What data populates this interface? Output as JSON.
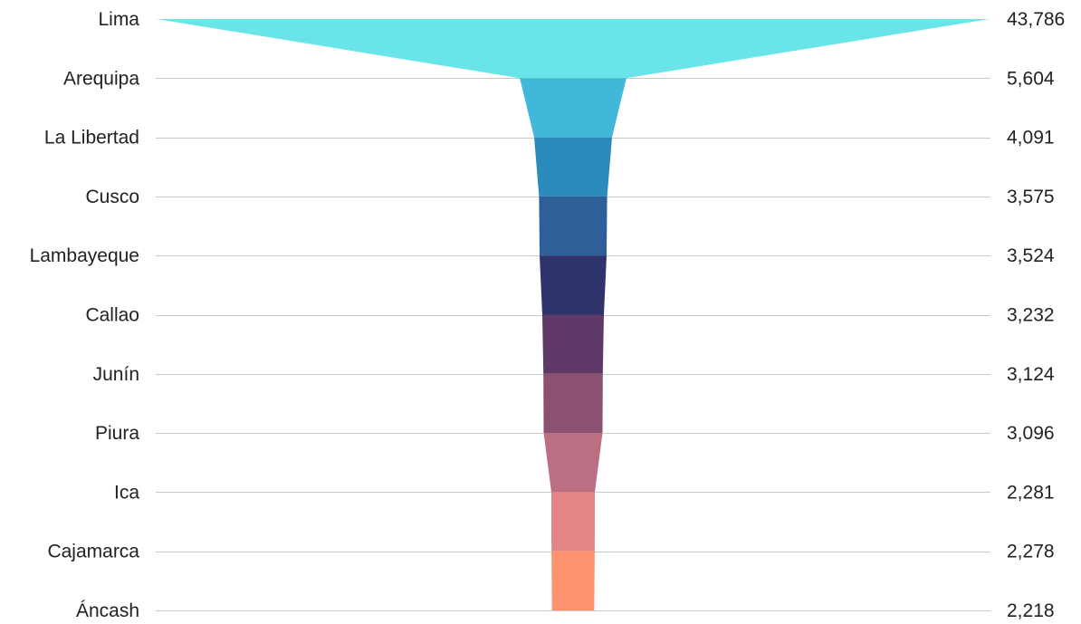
{
  "chart_data": {
    "type": "funnel",
    "title": "",
    "categories": [
      "Lima",
      "Arequipa",
      "La Libertad",
      "Cusco",
      "Lambayeque",
      "Callao",
      "Junín",
      "Piura",
      "Ica",
      "Cajamarca",
      "Áncash"
    ],
    "values": [
      43786,
      5604,
      4091,
      3575,
      3524,
      3232,
      3124,
      3096,
      2281,
      2278,
      2218
    ],
    "value_labels": [
      "43,786",
      "5,604",
      "4,091",
      "3,575",
      "3,524",
      "3,232",
      "3,124",
      "3,096",
      "2,281",
      "2,278",
      "2,218"
    ],
    "colors": [
      "#69e4e9",
      "#42b8d8",
      "#2b8bbd",
      "#2e5f99",
      "#2f336c",
      "#5e3867",
      "#8a5171",
      "#bc6e83",
      "#e38586",
      "#ff936f"
    ],
    "gridlines": true
  }
}
